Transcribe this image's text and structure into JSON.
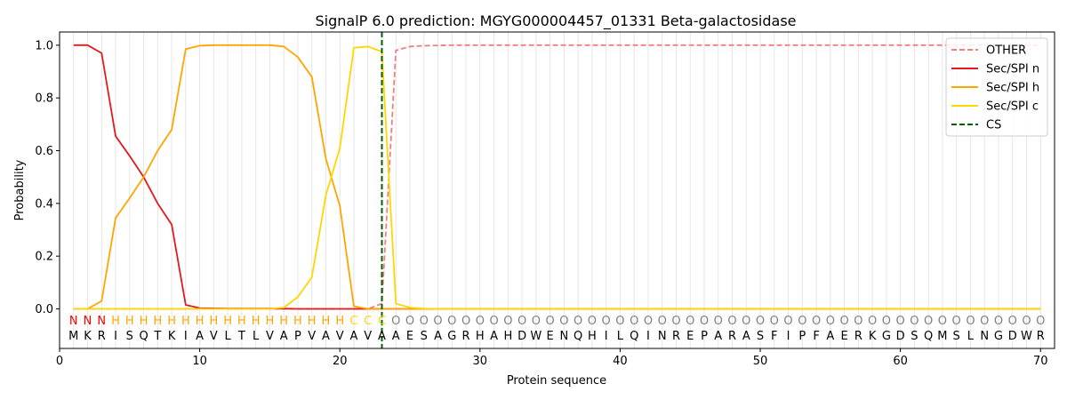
{
  "chart_data": {
    "type": "line",
    "title": "SignalP 6.0 prediction: MGYG000004457_01331 Beta-galactosidase",
    "xlabel": "Protein sequence",
    "ylabel": "Probability",
    "xlim": [
      0,
      71
    ],
    "ylim": [
      -0.15,
      1.05
    ],
    "xticks": [
      0,
      10,
      20,
      30,
      40,
      50,
      60,
      70
    ],
    "yticks": [
      "0.0",
      "0.2",
      "0.4",
      "0.6",
      "0.8",
      "1.0"
    ],
    "ytick_values": [
      0.0,
      0.2,
      0.4,
      0.6,
      0.8,
      1.0
    ],
    "grid": "vertical lines at every residue",
    "legend_position": "top-right",
    "sequence": [
      "M",
      "K",
      "R",
      "I",
      "S",
      "Q",
      "T",
      "K",
      "I",
      "A",
      "V",
      "L",
      "T",
      "L",
      "V",
      "A",
      "P",
      "V",
      "A",
      "V",
      "A",
      "V",
      "A",
      "A",
      "E",
      "S",
      "A",
      "G",
      "R",
      "H",
      "A",
      "H",
      "D",
      "W",
      "E",
      "N",
      "Q",
      "H",
      "I",
      "L",
      "Q",
      "I",
      "N",
      "R",
      "E",
      "P",
      "A",
      "R",
      "A",
      "S",
      "F",
      "I",
      "P",
      "F",
      "A",
      "E",
      "R",
      "K",
      "G",
      "D",
      "S",
      "Q",
      "M",
      "S",
      "L",
      "N",
      "G",
      "D",
      "W",
      "R"
    ],
    "region_labels": [
      "N",
      "N",
      "N",
      "H",
      "H",
      "H",
      "H",
      "H",
      "H",
      "H",
      "H",
      "H",
      "H",
      "H",
      "H",
      "H",
      "H",
      "H",
      "H",
      "H",
      "C",
      "C",
      "C",
      "O",
      "O",
      "O",
      "O",
      "O",
      "O",
      "O",
      "O",
      "O",
      "O",
      "O",
      "O",
      "O",
      "O",
      "O",
      "O",
      "O",
      "O",
      "O",
      "O",
      "O",
      "O",
      "O",
      "O",
      "O",
      "O",
      "O",
      "O",
      "O",
      "O",
      "O",
      "O",
      "O",
      "O",
      "O",
      "O",
      "O",
      "O",
      "O",
      "O",
      "O",
      "O",
      "O",
      "O",
      "O",
      "O",
      "O"
    ],
    "region_colors": {
      "N": "#ff0000",
      "H": "#ffa500",
      "C": "#ffd700",
      "O": "#808080"
    },
    "series": [
      {
        "name": "OTHER",
        "color": "#f08080",
        "dash": true,
        "values": [
          0,
          0,
          0,
          0,
          0,
          0,
          0,
          0,
          0,
          0,
          0,
          0,
          0,
          0,
          0,
          0,
          0,
          0,
          0,
          0,
          0,
          0,
          0.02,
          0.98,
          0.995,
          0.998,
          0.999,
          1,
          1,
          1,
          1,
          1,
          1,
          1,
          1,
          1,
          1,
          1,
          1,
          1,
          1,
          1,
          1,
          1,
          1,
          1,
          1,
          1,
          1,
          1,
          1,
          1,
          1,
          1,
          1,
          1,
          1,
          1,
          1,
          1,
          1,
          1,
          1,
          1,
          1,
          1,
          1,
          1,
          1,
          1
        ]
      },
      {
        "name": "Sec/SPI n",
        "color": "#e31a1c",
        "dash": false,
        "values": [
          1.0,
          1.0,
          0.97,
          0.655,
          0.58,
          0.5,
          0.4,
          0.32,
          0.015,
          0.003,
          0.002,
          0.001,
          0.001,
          0.001,
          0.001,
          0.001,
          0,
          0,
          0,
          0,
          0,
          0,
          0,
          0,
          0,
          0,
          0,
          0,
          0,
          0,
          0,
          0,
          0,
          0,
          0,
          0,
          0,
          0,
          0,
          0,
          0,
          0,
          0,
          0,
          0,
          0,
          0,
          0,
          0,
          0,
          0,
          0,
          0,
          0,
          0,
          0,
          0,
          0,
          0,
          0,
          0,
          0,
          0,
          0,
          0,
          0,
          0,
          0,
          0,
          0
        ]
      },
      {
        "name": "Sec/SPI h",
        "color": "#ffa500",
        "dash": false,
        "values": [
          0,
          0,
          0.03,
          0.345,
          0.42,
          0.5,
          0.6,
          0.68,
          0.985,
          0.998,
          1.0,
          1.0,
          1.0,
          1.0,
          1.0,
          0.995,
          0.955,
          0.88,
          0.57,
          0.39,
          0.01,
          0,
          0,
          0,
          0,
          0,
          0,
          0,
          0,
          0,
          0,
          0,
          0,
          0,
          0,
          0,
          0,
          0,
          0,
          0,
          0,
          0,
          0,
          0,
          0,
          0,
          0,
          0,
          0,
          0,
          0,
          0,
          0,
          0,
          0,
          0,
          0,
          0,
          0,
          0,
          0,
          0,
          0,
          0,
          0,
          0,
          0,
          0,
          0,
          0
        ]
      },
      {
        "name": "Sec/SPI c",
        "color": "#ffd700",
        "dash": false,
        "values": [
          0,
          0,
          0,
          0,
          0,
          0,
          0,
          0,
          0,
          0,
          0,
          0,
          0,
          0,
          0,
          0.005,
          0.045,
          0.12,
          0.43,
          0.61,
          0.99,
          0.995,
          0.975,
          0.02,
          0.005,
          0.001,
          0,
          0,
          0,
          0,
          0,
          0,
          0,
          0,
          0,
          0,
          0,
          0,
          0,
          0,
          0,
          0,
          0,
          0,
          0,
          0,
          0,
          0,
          0,
          0,
          0,
          0,
          0,
          0,
          0,
          0,
          0,
          0,
          0,
          0,
          0,
          0,
          0,
          0,
          0,
          0,
          0,
          0,
          0,
          0
        ]
      },
      {
        "name": "CS",
        "color": "#006400",
        "dash": true,
        "vertical_x": 23
      }
    ]
  }
}
